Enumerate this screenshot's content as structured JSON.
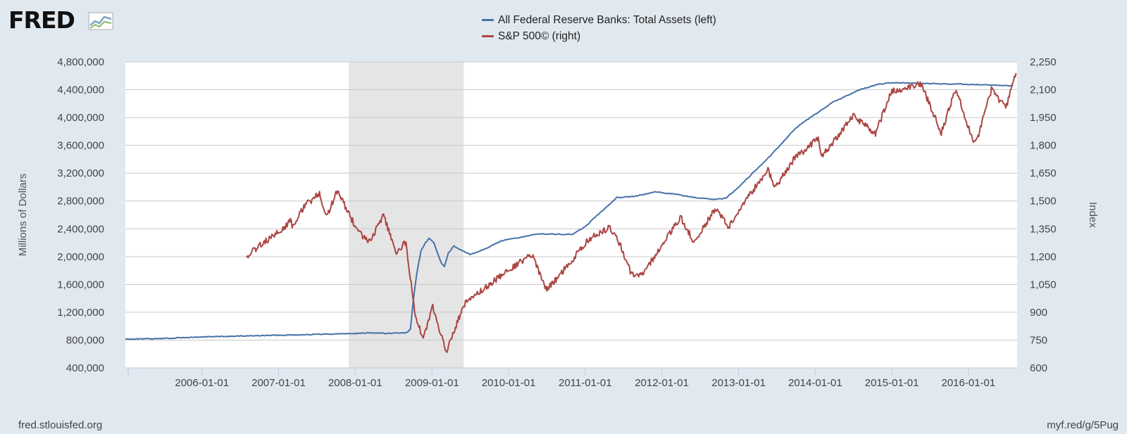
{
  "header": {
    "logo_text": "FRED",
    "legend": [
      {
        "label": "All Federal Reserve Banks: Total Assets (left)",
        "color": "#4572a7"
      },
      {
        "label": "S&P 500© (right)",
        "color": "#aa4643"
      }
    ]
  },
  "footer": {
    "source": "fred.stlouisfed.org",
    "short_link": "myf.red/g/5Pug"
  },
  "chart_data": {
    "type": "line",
    "title": "",
    "ylabel_left": "Millions of Dollars",
    "ylabel_right": "Index",
    "x_ticks": [
      "2006-01-01",
      "2007-01-01",
      "2008-01-01",
      "2009-01-01",
      "2010-01-01",
      "2011-01-01",
      "2012-01-01",
      "2013-01-01",
      "2014-01-01",
      "2015-01-01",
      "2016-01-01"
    ],
    "x_range": [
      "2005-01-01",
      "2016-08-20"
    ],
    "y_left_ticks": [
      "400,000",
      "800,000",
      "1,200,000",
      "1,600,000",
      "2,000,000",
      "2,400,000",
      "2,800,000",
      "3,200,000",
      "3,600,000",
      "4,000,000",
      "4,400,000",
      "4,800,000"
    ],
    "y_left_range": [
      400000,
      4800000
    ],
    "y_right_ticks": [
      "600",
      "750",
      "900",
      "1,050",
      "1,200",
      "1,350",
      "1,500",
      "1,650",
      "1,800",
      "1,950",
      "2,100",
      "2,250"
    ],
    "y_right_range": [
      600,
      2250
    ],
    "recession": {
      "start": "2007-12-01",
      "end": "2009-06-01"
    },
    "grid": true,
    "series": [
      {
        "name": "All Federal Reserve Banks: Total Assets (left)",
        "axis": "left",
        "color": "#4572a7",
        "points": [
          [
            "2005-01-01",
            815000
          ],
          [
            "2005-06-01",
            820000
          ],
          [
            "2006-01-01",
            845000
          ],
          [
            "2006-06-01",
            855000
          ],
          [
            "2007-01-01",
            870000
          ],
          [
            "2007-06-01",
            880000
          ],
          [
            "2008-01-01",
            895000
          ],
          [
            "2008-03-15",
            905000
          ],
          [
            "2008-06-01",
            895000
          ],
          [
            "2008-09-01",
            905000
          ],
          [
            "2008-09-20",
            950000
          ],
          [
            "2008-10-05",
            1400000
          ],
          [
            "2008-10-20",
            1750000
          ],
          [
            "2008-11-10",
            2080000
          ],
          [
            "2008-12-01",
            2200000
          ],
          [
            "2008-12-18",
            2260000
          ],
          [
            "2009-01-10",
            2200000
          ],
          [
            "2009-02-15",
            1900000
          ],
          [
            "2009-03-01",
            1860000
          ],
          [
            "2009-03-20",
            2050000
          ],
          [
            "2009-04-15",
            2150000
          ],
          [
            "2009-05-01",
            2120000
          ],
          [
            "2009-06-01",
            2080000
          ],
          [
            "2009-07-01",
            2030000
          ],
          [
            "2009-09-01",
            2100000
          ],
          [
            "2009-12-01",
            2230000
          ],
          [
            "2010-03-01",
            2280000
          ],
          [
            "2010-06-01",
            2330000
          ],
          [
            "2010-09-01",
            2320000
          ],
          [
            "2010-11-01",
            2320000
          ],
          [
            "2011-01-01",
            2430000
          ],
          [
            "2011-03-01",
            2600000
          ],
          [
            "2011-06-01",
            2850000
          ],
          [
            "2011-09-01",
            2870000
          ],
          [
            "2011-12-01",
            2930000
          ],
          [
            "2012-03-01",
            2900000
          ],
          [
            "2012-06-01",
            2850000
          ],
          [
            "2012-09-01",
            2820000
          ],
          [
            "2012-11-01",
            2840000
          ],
          [
            "2013-01-01",
            3000000
          ],
          [
            "2013-06-01",
            3450000
          ],
          [
            "2013-10-01",
            3850000
          ],
          [
            "2014-01-01",
            4050000
          ],
          [
            "2014-04-01",
            4230000
          ],
          [
            "2014-08-01",
            4400000
          ],
          [
            "2014-11-01",
            4480000
          ],
          [
            "2015-01-01",
            4500000
          ],
          [
            "2015-06-01",
            4490000
          ],
          [
            "2015-12-01",
            4480000
          ],
          [
            "2016-03-01",
            4470000
          ],
          [
            "2016-06-01",
            4460000
          ],
          [
            "2016-08-01",
            4460000
          ]
        ]
      },
      {
        "name": "S&P 500© (right)",
        "axis": "right",
        "color": "#aa4643",
        "points": [
          [
            "2006-08-01",
            1200
          ],
          [
            "2006-10-01",
            1260
          ],
          [
            "2007-01-01",
            1330
          ],
          [
            "2007-02-27",
            1390
          ],
          [
            "2007-03-10",
            1360
          ],
          [
            "2007-05-01",
            1470
          ],
          [
            "2007-07-15",
            1540
          ],
          [
            "2007-08-15",
            1410
          ],
          [
            "2007-10-10",
            1560
          ],
          [
            "2007-11-26",
            1440
          ],
          [
            "2008-01-20",
            1330
          ],
          [
            "2008-03-10",
            1280
          ],
          [
            "2008-05-15",
            1420
          ],
          [
            "2008-07-15",
            1220
          ],
          [
            "2008-08-30",
            1280
          ],
          [
            "2008-10-10",
            900
          ],
          [
            "2008-11-20",
            750
          ],
          [
            "2009-01-05",
            930
          ],
          [
            "2009-03-09",
            680
          ],
          [
            "2009-06-01",
            940
          ],
          [
            "2009-10-01",
            1050
          ],
          [
            "2010-01-15",
            1140
          ],
          [
            "2010-04-23",
            1210
          ],
          [
            "2010-07-02",
            1020
          ],
          [
            "2010-10-01",
            1140
          ],
          [
            "2011-01-15",
            1290
          ],
          [
            "2011-04-29",
            1360
          ],
          [
            "2011-06-15",
            1270
          ],
          [
            "2011-08-08",
            1110
          ],
          [
            "2011-10-03",
            1100
          ],
          [
            "2012-01-15",
            1290
          ],
          [
            "2012-04-01",
            1410
          ],
          [
            "2012-06-01",
            1280
          ],
          [
            "2012-09-14",
            1460
          ],
          [
            "2012-11-15",
            1360
          ],
          [
            "2013-01-15",
            1470
          ],
          [
            "2013-05-21",
            1670
          ],
          [
            "2013-06-24",
            1570
          ],
          [
            "2013-09-18",
            1720
          ],
          [
            "2014-01-15",
            1840
          ],
          [
            "2014-02-03",
            1740
          ],
          [
            "2014-06-30",
            1960
          ],
          [
            "2014-10-15",
            1860
          ],
          [
            "2014-12-29",
            2090
          ],
          [
            "2015-05-20",
            2130
          ],
          [
            "2015-08-25",
            1870
          ],
          [
            "2015-11-03",
            2110
          ],
          [
            "2016-01-20",
            1830
          ],
          [
            "2016-02-11",
            1830
          ],
          [
            "2016-04-20",
            2100
          ],
          [
            "2016-06-27",
            2000
          ],
          [
            "2016-08-15",
            2190
          ]
        ]
      }
    ]
  }
}
